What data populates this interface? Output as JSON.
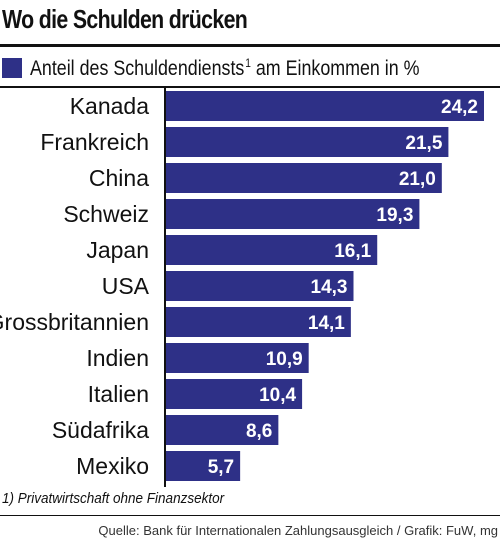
{
  "chart_data": {
    "type": "bar",
    "orientation": "horizontal",
    "title": "Wo die Schulden drücken",
    "legend": {
      "label": "Anteil des Schuldendiensts",
      "superscript": "1",
      "label_suffix": "am Einkommen in %"
    },
    "categories": [
      "Kanada",
      "Frankreich",
      "China",
      "Schweiz",
      "Japan",
      "USA",
      "Grossbritannien",
      "Indien",
      "Italien",
      "Südafrika",
      "Mexiko"
    ],
    "series": [
      {
        "values": [
          24.2,
          21.5,
          21.0,
          19.3,
          16.1,
          14.3,
          14.1,
          10.9,
          10.4,
          8.6,
          5.7
        ],
        "labels": [
          "24,2",
          "21,5",
          "21,0",
          "19,3",
          "16,1",
          "14,3",
          "14,1",
          "10,9",
          "10,4",
          "8,6",
          "5,7"
        ]
      }
    ],
    "xlim": [
      0,
      24.2
    ],
    "grid": false,
    "colors": {
      "bar": "#2e3087",
      "bar_label": "#ffffff",
      "axis": "#111111"
    },
    "footnote": "1) Privatwirtschaft ohne Finanzsektor",
    "source": "Quelle: Bank für Internationalen Zahlungsausgleich / Grafik: FuW, mg"
  }
}
